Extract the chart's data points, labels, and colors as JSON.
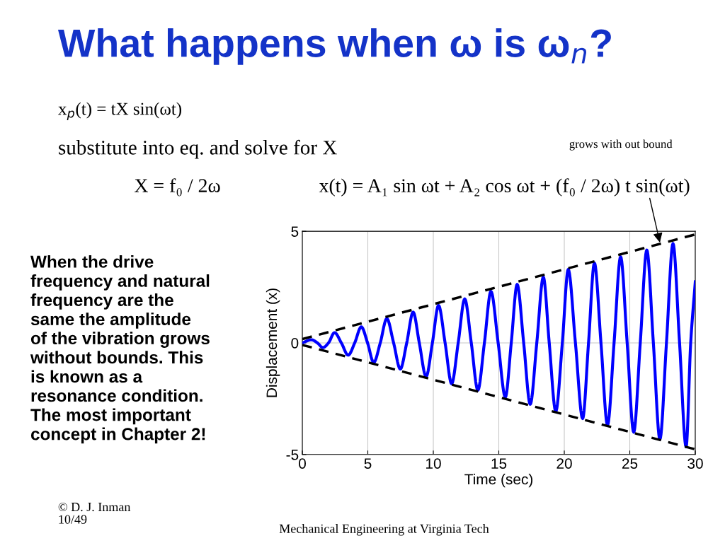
{
  "chart_data": {
    "type": "line",
    "title": "What happens when ω is ω$_{n}$?",
    "xlabel": "Time (sec)",
    "ylabel": "Displacement (x)",
    "xlim": [
      0,
      30
    ],
    "ylim": [
      -5,
      5
    ],
    "xticks": [
      0,
      5,
      10,
      15,
      20,
      25,
      30
    ],
    "yticks": [
      -5,
      0,
      5
    ],
    "grid": true,
    "marker": "none",
    "series": [
      {
        "color": "#0000ff",
        "line_style": "solid",
        "x": [
          0,
          0.7,
          1.15,
          1.57,
          2.0,
          2.46,
          2.98,
          3.5,
          4.0,
          4.5,
          4.98,
          5.45,
          5.95,
          6.45,
          6.97,
          7.48,
          7.97,
          8.46,
          8.93,
          9.45,
          9.93,
          10.4,
          10.9,
          11.4,
          11.9,
          12.4,
          12.9,
          13.4,
          13.9,
          14.4,
          14.95,
          15.5,
          15.95,
          16.4,
          16.9,
          17.4,
          17.9,
          18.4,
          18.85,
          19.35,
          19.85,
          20.3,
          20.85,
          21.4,
          21.85,
          22.3,
          22.8,
          23.3,
          23.8,
          24.3,
          24.8,
          25.3,
          25.8,
          26.3,
          26.8,
          27.3,
          27.8,
          28.3,
          28.8,
          29.3,
          29.65,
          30
        ],
        "values": [
          0,
          0.14,
          0,
          -0.21,
          0,
          0.46,
          0,
          -0.55,
          0,
          0.72,
          0,
          -0.88,
          0,
          1.09,
          0,
          -1.17,
          0,
          1.38,
          0,
          -1.51,
          0,
          1.68,
          0,
          -1.83,
          0,
          1.97,
          0,
          -2.12,
          0,
          2.31,
          0,
          -2.43,
          0,
          2.62,
          0,
          -2.75,
          0,
          2.95,
          0,
          -3.07,
          0,
          3.29,
          0,
          -3.39,
          0,
          3.58,
          0,
          -3.68,
          0,
          3.86,
          0,
          -4.0,
          0,
          4.16,
          0,
          -4.32,
          0,
          4.45,
          0,
          -4.66,
          0,
          2.74
        ]
      },
      {
        "color": "#000000",
        "line_style": "dashed",
        "x": [
          0,
          30
        ],
        "values": [
          0.17,
          4.86
        ]
      },
      {
        "color": "#000000",
        "line_style": "dashed",
        "x": [
          0,
          30
        ],
        "values": [
          -0.09,
          -4.77
        ]
      }
    ],
    "annotations": [
      "x$_{p}$(t) = tX sin(ωt)",
      "substitute into eq. and solve for X",
      "X = f₀ / 2ω",
      {
        "text": "x(t) = A₁ sin ωt + A₂ cos ωt + (f₀ / 2ω) t sin(ωt)",
        "x": 27.3,
        "y": 4.5
      },
      "grows with out bound",
      "When the drive\nfrequency and natural\nfrequency are the\nsame the amplitude\nof the vibration grows\nwithout bounds. This\nis known as a\nresonance condition.\nThe most important\nconcept in Chapter 2!",
      "© D. J. Inman\n10/49",
      "Mechanical Engineering at Virginia Tech"
    ]
  }
}
